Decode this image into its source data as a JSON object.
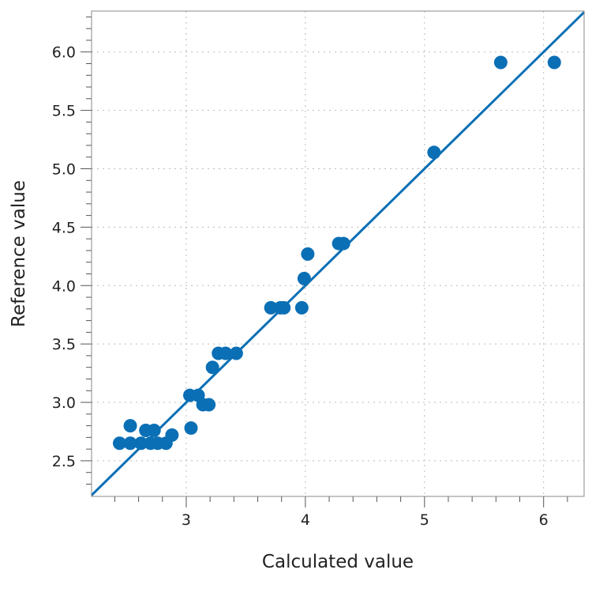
{
  "chart_data": {
    "type": "scatter",
    "title": "",
    "xlabel": "Calculated value",
    "ylabel": "Reference value",
    "xlim": [
      2.205,
      6.34
    ],
    "ylim": [
      2.195,
      6.35
    ],
    "grid": true,
    "x_ticks": [
      "3",
      "4",
      "5",
      "6"
    ],
    "y_ticks": [
      "2.5",
      "3.0",
      "3.5",
      "4.0",
      "4.5",
      "5.0",
      "5.5",
      "6.0"
    ],
    "point_color": "#0a6fb5",
    "line_color": "#0a6fb5",
    "reference_line": {
      "type": "y=x"
    },
    "points": [
      [
        2.44,
        2.65
      ],
      [
        2.53,
        2.8
      ],
      [
        2.53,
        2.65
      ],
      [
        2.62,
        2.65
      ],
      [
        2.66,
        2.76
      ],
      [
        2.73,
        2.76
      ],
      [
        2.7,
        2.65
      ],
      [
        2.76,
        2.65
      ],
      [
        2.83,
        2.65
      ],
      [
        2.88,
        2.72
      ],
      [
        3.04,
        2.78
      ],
      [
        3.03,
        3.06
      ],
      [
        3.1,
        3.06
      ],
      [
        3.14,
        2.98
      ],
      [
        3.19,
        2.98
      ],
      [
        3.22,
        3.3
      ],
      [
        3.27,
        3.42
      ],
      [
        3.33,
        3.42
      ],
      [
        3.42,
        3.42
      ],
      [
        3.71,
        3.81
      ],
      [
        3.79,
        3.81
      ],
      [
        3.82,
        3.81
      ],
      [
        3.97,
        3.81
      ],
      [
        3.99,
        4.06
      ],
      [
        4.02,
        4.27
      ],
      [
        4.28,
        4.36
      ],
      [
        4.32,
        4.36
      ],
      [
        5.08,
        5.14
      ],
      [
        5.64,
        5.91
      ],
      [
        6.09,
        5.91
      ]
    ]
  }
}
